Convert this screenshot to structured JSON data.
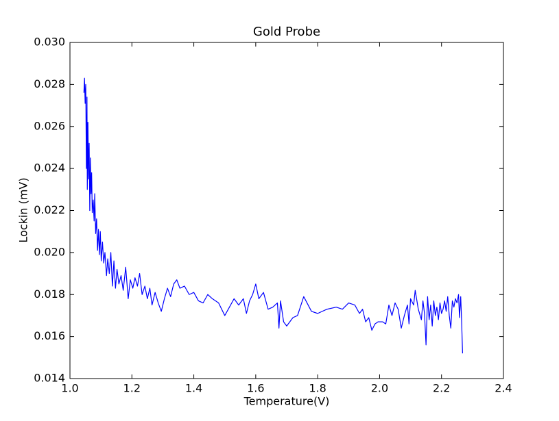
{
  "chart_data": {
    "type": "line",
    "title": "Gold Probe",
    "x_label": "Temperature(V)",
    "y_label": "Lockin (mV)",
    "color": "#0000ff",
    "xlim": [
      1.0,
      2.4
    ],
    "xticks": [
      {
        "value": 1,
        "label": "1.0"
      },
      1.2,
      1.4,
      1.6,
      1.8,
      {
        "value": 2,
        "label": "2.0"
      },
      2.2,
      2.4
    ],
    "ylim": [
      0.014,
      0.03
    ],
    "yticks": [
      0.014,
      0.016,
      0.018,
      {
        "value": 0.02,
        "label": "0.020"
      },
      0.022,
      0.024,
      0.026,
      0.028,
      {
        "value": 0.03,
        "label": "0.030"
      }
    ],
    "grid": false,
    "x": [
      1.045,
      1.047,
      1.049,
      1.051,
      1.053,
      1.055,
      1.056,
      1.058,
      1.06,
      1.062,
      1.064,
      1.066,
      1.068,
      1.07,
      1.072,
      1.075,
      1.078,
      1.08,
      1.083,
      1.086,
      1.089,
      1.092,
      1.095,
      1.098,
      1.101,
      1.105,
      1.109,
      1.113,
      1.118,
      1.122,
      1.127,
      1.132,
      1.137,
      1.142,
      1.147,
      1.152,
      1.158,
      1.165,
      1.172,
      1.18,
      1.188,
      1.195,
      1.203,
      1.21,
      1.218,
      1.225,
      1.233,
      1.242,
      1.25,
      1.258,
      1.265,
      1.275,
      1.285,
      1.295,
      1.305,
      1.315,
      1.325,
      1.335,
      1.345,
      1.355,
      1.37,
      1.385,
      1.4,
      1.415,
      1.43,
      1.445,
      1.46,
      1.48,
      1.5,
      1.515,
      1.53,
      1.545,
      1.56,
      1.57,
      1.58,
      1.59,
      1.6,
      1.61,
      1.625,
      1.64,
      1.655,
      1.67,
      1.675,
      1.68,
      1.69,
      1.7,
      1.72,
      1.735,
      1.755,
      1.78,
      1.8,
      1.83,
      1.86,
      1.88,
      1.9,
      1.92,
      1.935,
      1.945,
      1.955,
      1.965,
      1.975,
      1.985,
      1.995,
      2.01,
      2.02,
      2.03,
      2.04,
      2.05,
      2.06,
      2.07,
      2.08,
      2.09,
      2.095,
      2.1,
      2.11,
      2.115,
      2.125,
      2.135,
      2.14,
      2.145,
      2.15,
      2.155,
      2.16,
      2.165,
      2.17,
      2.175,
      2.18,
      2.185,
      2.19,
      2.195,
      2.2,
      2.205,
      2.21,
      2.215,
      2.22,
      2.225,
      2.23,
      2.235,
      2.24,
      2.245,
      2.25,
      2.255,
      2.258,
      2.262,
      2.265,
      2.268
    ],
    "values": [
      0.0276,
      0.0283,
      0.0271,
      0.028,
      0.024,
      0.0274,
      0.023,
      0.0262,
      0.0235,
      0.0252,
      0.022,
      0.0245,
      0.0228,
      0.0238,
      0.0219,
      0.0225,
      0.0215,
      0.0228,
      0.0209,
      0.0216,
      0.0201,
      0.0211,
      0.0199,
      0.021,
      0.0196,
      0.0205,
      0.0195,
      0.02,
      0.0189,
      0.0197,
      0.019,
      0.02,
      0.0184,
      0.0196,
      0.0183,
      0.0192,
      0.0185,
      0.0189,
      0.0182,
      0.0193,
      0.0178,
      0.0187,
      0.0183,
      0.0188,
      0.0184,
      0.019,
      0.018,
      0.0184,
      0.0178,
      0.0183,
      0.0175,
      0.0181,
      0.0176,
      0.0172,
      0.0178,
      0.0183,
      0.0179,
      0.0185,
      0.0187,
      0.0183,
      0.0184,
      0.018,
      0.0181,
      0.0177,
      0.0176,
      0.018,
      0.0178,
      0.0176,
      0.017,
      0.0174,
      0.0178,
      0.0175,
      0.0178,
      0.0171,
      0.0177,
      0.018,
      0.0185,
      0.0178,
      0.0181,
      0.0173,
      0.0174,
      0.0176,
      0.0164,
      0.0177,
      0.0167,
      0.0165,
      0.0169,
      0.017,
      0.0179,
      0.0172,
      0.0171,
      0.0173,
      0.0174,
      0.0173,
      0.0176,
      0.0175,
      0.0171,
      0.0173,
      0.0167,
      0.0169,
      0.0163,
      0.0166,
      0.0167,
      0.0167,
      0.0166,
      0.0175,
      0.017,
      0.0176,
      0.0173,
      0.0164,
      0.017,
      0.0175,
      0.0166,
      0.0178,
      0.0175,
      0.0182,
      0.0173,
      0.0168,
      0.0177,
      0.0171,
      0.0156,
      0.0179,
      0.0168,
      0.0175,
      0.0165,
      0.0177,
      0.017,
      0.0174,
      0.0168,
      0.0176,
      0.0171,
      0.0173,
      0.0177,
      0.0172,
      0.0179,
      0.017,
      0.0164,
      0.0177,
      0.0174,
      0.0178,
      0.0176,
      0.018,
      0.0169,
      0.0179,
      0.0167,
      0.0152
    ]
  }
}
